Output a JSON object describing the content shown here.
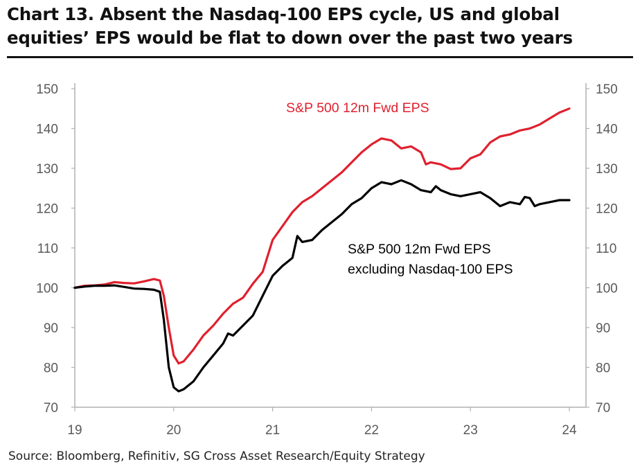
{
  "header": {
    "title_line1": "Chart 13. Absent the Nasdaq-100 EPS cycle, US and global",
    "title_line2": "equities’ EPS would be flat to down over the past two years"
  },
  "footer": {
    "source": "Source: Bloomberg, Refinitiv, SG Cross Asset Research/Equity Strategy"
  },
  "colors": {
    "sp500": "#e0202e",
    "ex_ndx": "#000000",
    "axis": "#b0b0b0",
    "tick_text": "#595959"
  },
  "chart_data": {
    "type": "line",
    "title": "",
    "xlabel": "",
    "ylabel": "",
    "xlim": [
      19,
      24
    ],
    "ylim": [
      70,
      150
    ],
    "x_ticks": [
      "19",
      "20",
      "21",
      "22",
      "23",
      "24"
    ],
    "y_ticks": [
      "150",
      "140",
      "130",
      "120",
      "110",
      "100",
      "90",
      "80",
      "70"
    ],
    "y_axis_right": true,
    "grid": false,
    "series": [
      {
        "name": "S&P 500 12m Fwd EPS",
        "color": "#e0202e",
        "points": [
          [
            19.0,
            100.0
          ],
          [
            19.1,
            100.5
          ],
          [
            19.2,
            100.6
          ],
          [
            19.3,
            100.8
          ],
          [
            19.4,
            101.4
          ],
          [
            19.5,
            101.2
          ],
          [
            19.6,
            101.1
          ],
          [
            19.7,
            101.6
          ],
          [
            19.8,
            102.2
          ],
          [
            19.86,
            101.8
          ],
          [
            19.9,
            98.0
          ],
          [
            19.95,
            90.0
          ],
          [
            20.0,
            83.0
          ],
          [
            20.05,
            81.0
          ],
          [
            20.1,
            81.5
          ],
          [
            20.2,
            84.5
          ],
          [
            20.3,
            88.0
          ],
          [
            20.4,
            90.5
          ],
          [
            20.5,
            93.5
          ],
          [
            20.6,
            96.0
          ],
          [
            20.7,
            97.5
          ],
          [
            20.8,
            101.0
          ],
          [
            20.9,
            104.0
          ],
          [
            21.0,
            112.0
          ],
          [
            21.1,
            115.5
          ],
          [
            21.2,
            119.0
          ],
          [
            21.3,
            121.5
          ],
          [
            21.4,
            123.0
          ],
          [
            21.5,
            125.0
          ],
          [
            21.6,
            127.0
          ],
          [
            21.7,
            129.0
          ],
          [
            21.8,
            131.5
          ],
          [
            21.9,
            134.0
          ],
          [
            22.0,
            136.0
          ],
          [
            22.1,
            137.5
          ],
          [
            22.2,
            137.0
          ],
          [
            22.3,
            135.0
          ],
          [
            22.4,
            135.5
          ],
          [
            22.5,
            134.0
          ],
          [
            22.55,
            131.0
          ],
          [
            22.6,
            131.5
          ],
          [
            22.7,
            131.0
          ],
          [
            22.8,
            129.8
          ],
          [
            22.9,
            130.0
          ],
          [
            23.0,
            132.5
          ],
          [
            23.1,
            133.5
          ],
          [
            23.2,
            136.5
          ],
          [
            23.3,
            138.0
          ],
          [
            23.4,
            138.5
          ],
          [
            23.5,
            139.5
          ],
          [
            23.6,
            140.0
          ],
          [
            23.7,
            141.0
          ],
          [
            23.8,
            142.5
          ],
          [
            23.9,
            144.0
          ],
          [
            24.0,
            145.0
          ]
        ]
      },
      {
        "name": "S&P 500 12m Fwd EPS excluding Nasdaq-100 EPS",
        "color": "#000000",
        "points": [
          [
            19.0,
            100.0
          ],
          [
            19.1,
            100.3
          ],
          [
            19.2,
            100.5
          ],
          [
            19.3,
            100.5
          ],
          [
            19.4,
            100.6
          ],
          [
            19.5,
            100.2
          ],
          [
            19.6,
            99.8
          ],
          [
            19.7,
            99.7
          ],
          [
            19.8,
            99.5
          ],
          [
            19.86,
            99.0
          ],
          [
            19.9,
            92.0
          ],
          [
            19.95,
            80.0
          ],
          [
            20.0,
            75.0
          ],
          [
            20.05,
            74.0
          ],
          [
            20.1,
            74.5
          ],
          [
            20.2,
            76.5
          ],
          [
            20.3,
            80.0
          ],
          [
            20.4,
            83.0
          ],
          [
            20.5,
            86.0
          ],
          [
            20.55,
            88.5
          ],
          [
            20.6,
            88.0
          ],
          [
            20.7,
            90.5
          ],
          [
            20.8,
            93.0
          ],
          [
            20.9,
            98.0
          ],
          [
            21.0,
            103.0
          ],
          [
            21.1,
            105.5
          ],
          [
            21.2,
            107.5
          ],
          [
            21.25,
            113.0
          ],
          [
            21.3,
            111.5
          ],
          [
            21.4,
            112.0
          ],
          [
            21.5,
            114.5
          ],
          [
            21.6,
            116.5
          ],
          [
            21.7,
            118.5
          ],
          [
            21.8,
            121.0
          ],
          [
            21.9,
            122.5
          ],
          [
            22.0,
            125.0
          ],
          [
            22.1,
            126.5
          ],
          [
            22.2,
            126.0
          ],
          [
            22.3,
            127.0
          ],
          [
            22.4,
            126.0
          ],
          [
            22.5,
            124.5
          ],
          [
            22.6,
            124.0
          ],
          [
            22.65,
            125.5
          ],
          [
            22.7,
            124.5
          ],
          [
            22.8,
            123.5
          ],
          [
            22.9,
            123.0
          ],
          [
            23.0,
            123.5
          ],
          [
            23.1,
            124.0
          ],
          [
            23.2,
            122.5
          ],
          [
            23.3,
            120.5
          ],
          [
            23.4,
            121.5
          ],
          [
            23.5,
            121.0
          ],
          [
            23.55,
            122.8
          ],
          [
            23.6,
            122.5
          ],
          [
            23.65,
            120.5
          ],
          [
            23.7,
            121.0
          ],
          [
            23.8,
            121.5
          ],
          [
            23.9,
            122.0
          ],
          [
            24.0,
            122.0
          ]
        ]
      }
    ],
    "annotations": [
      {
        "series": 0,
        "lines": [
          "S&P 500 12m Fwd EPS"
        ]
      },
      {
        "series": 1,
        "lines": [
          "S&P 500 12m Fwd EPS",
          "excluding Nasdaq-100 EPS"
        ]
      }
    ]
  }
}
